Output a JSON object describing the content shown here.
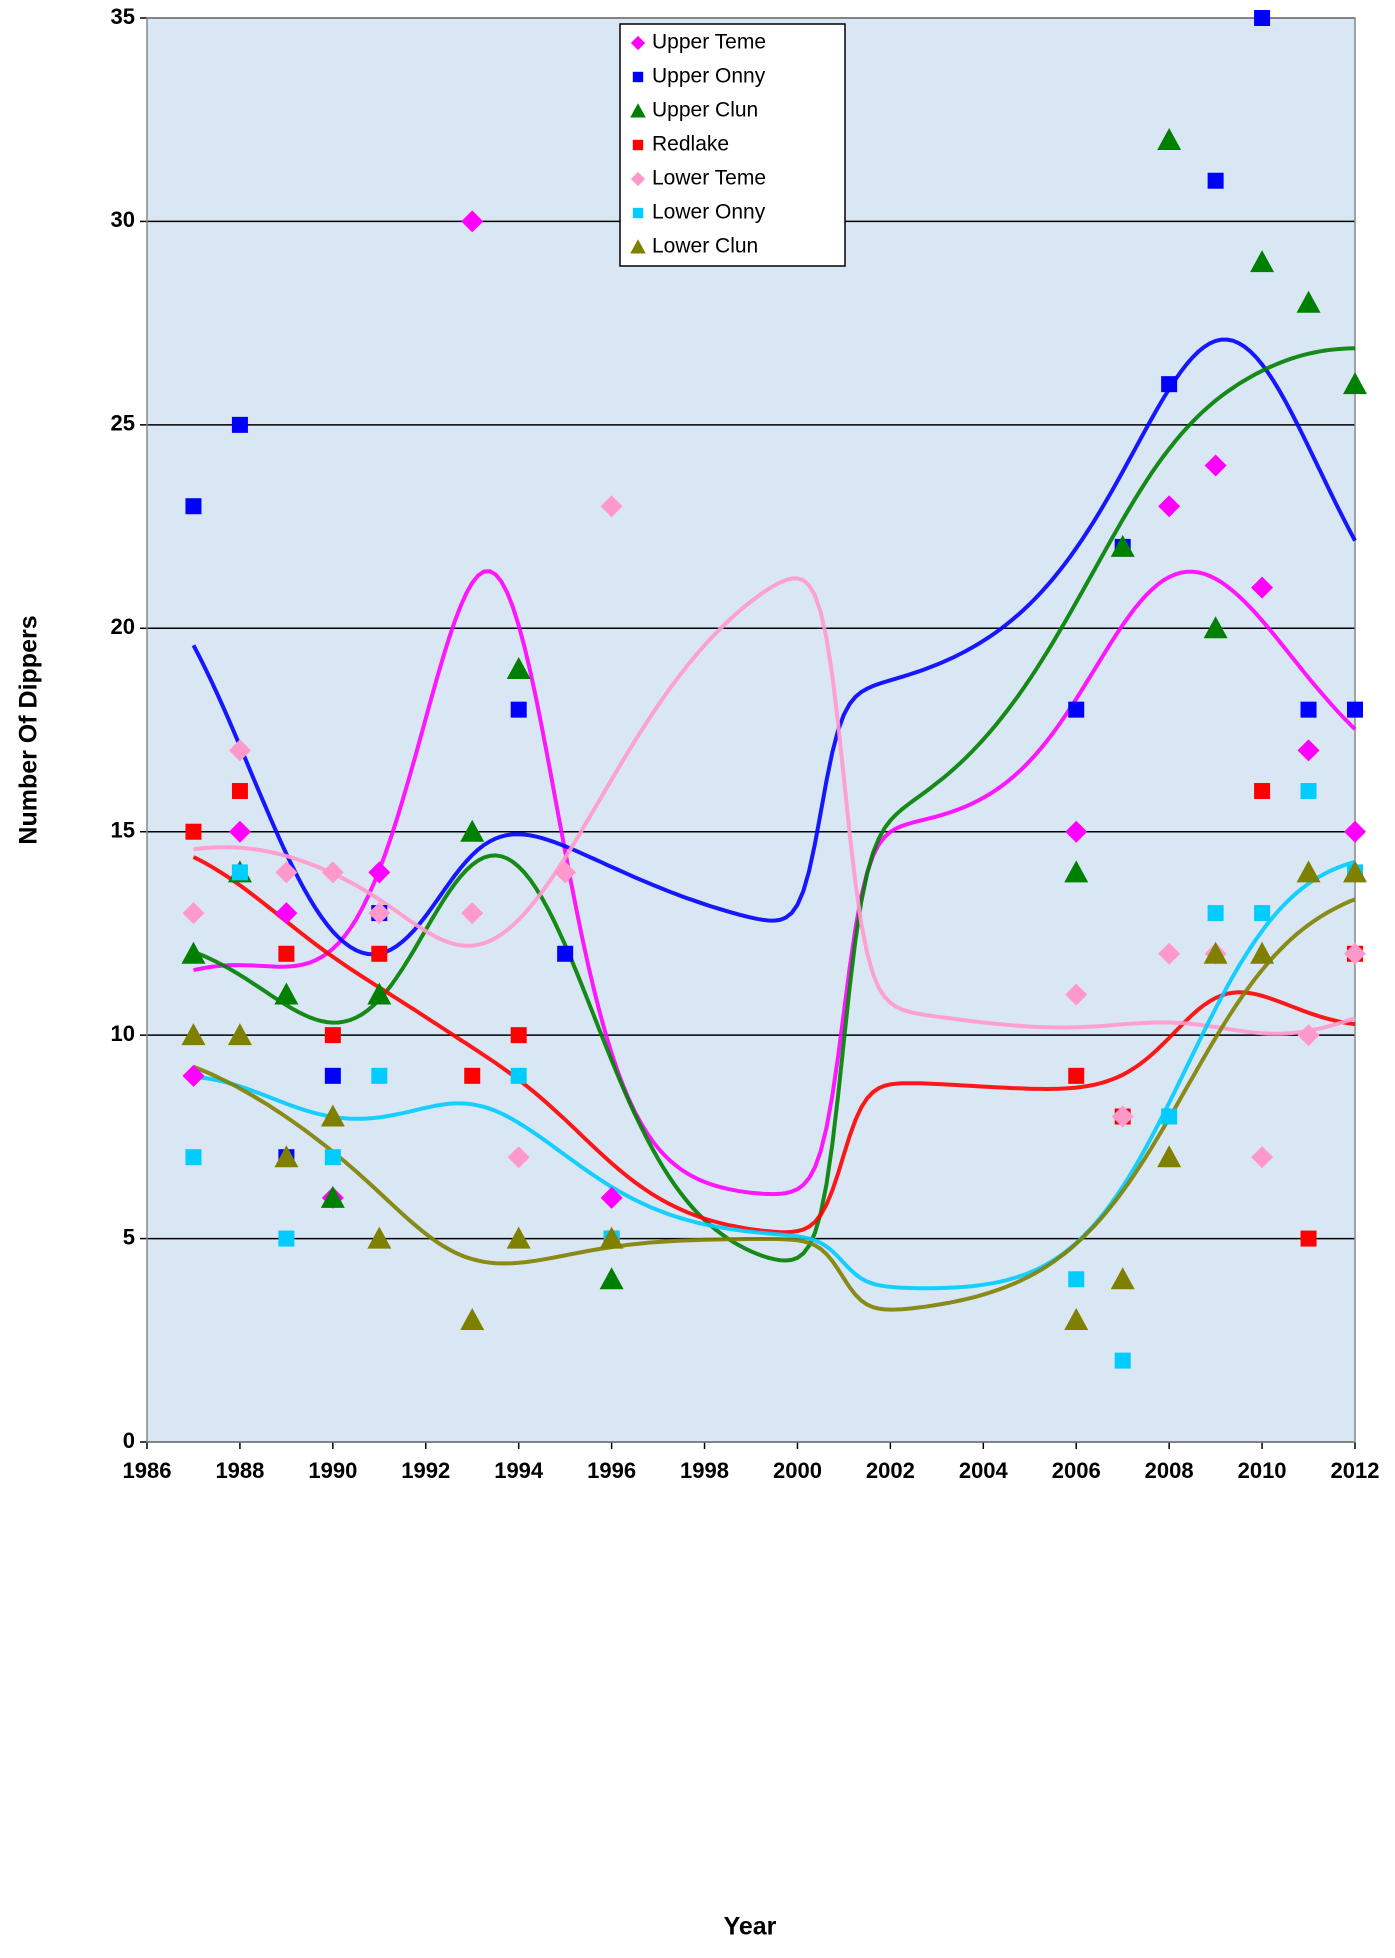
{
  "chart_data": {
    "type": "scatter",
    "x_label": "Year",
    "y_label": "Number Of Dippers",
    "x": [
      1987,
      1988,
      1989,
      1990,
      1991,
      1993,
      1994,
      1995,
      1996,
      2006,
      2007,
      2008,
      2009,
      2010,
      2011,
      2012
    ],
    "series": [
      {
        "name": "Upper Teme",
        "color": "#ff00ff",
        "marker": "diamond",
        "values": [
          9,
          15,
          13,
          6,
          14,
          30,
          null,
          null,
          6,
          15,
          null,
          23,
          24,
          21,
          17,
          15
        ]
      },
      {
        "name": "Upper Onny",
        "color": "#0000ff",
        "marker": "square",
        "values": [
          23,
          25,
          7,
          9,
          13,
          null,
          18,
          12,
          null,
          18,
          22,
          26,
          31,
          35,
          18,
          18
        ]
      },
      {
        "name": "Upper Clun",
        "color": "#008000",
        "marker": "triangle",
        "values": [
          12,
          14,
          11,
          6,
          11,
          15,
          19,
          null,
          4,
          14,
          22,
          32,
          20,
          29,
          28,
          26
        ]
      },
      {
        "name": "Redlake",
        "color": "#ff0000",
        "marker": "square",
        "values": [
          15,
          16,
          12,
          10,
          12,
          9,
          10,
          null,
          5,
          9,
          8,
          null,
          null,
          16,
          5,
          12
        ]
      },
      {
        "name": "Lower Teme",
        "color": "#ff99cc",
        "marker": "diamond",
        "values": [
          13,
          17,
          14,
          14,
          13,
          13,
          7,
          14,
          23,
          11,
          8,
          12,
          12,
          7,
          10,
          12
        ]
      },
      {
        "name": "Lower Onny",
        "color": "#00ccff",
        "marker": "square",
        "values": [
          7,
          14,
          5,
          7,
          9,
          null,
          9,
          null,
          5,
          4,
          2,
          8,
          13,
          13,
          16,
          14
        ]
      },
      {
        "name": "Lower Clun",
        "color": "#808000",
        "marker": "triangle",
        "values": [
          10,
          10,
          7,
          8,
          5,
          3,
          5,
          null,
          5,
          3,
          4,
          7,
          12,
          12,
          14,
          14
        ]
      }
    ],
    "xlim": [
      1986,
      2012
    ],
    "xticks": [
      1986,
      1988,
      1990,
      1992,
      1994,
      1996,
      1998,
      2000,
      2002,
      2004,
      2006,
      2008,
      2010,
      2012
    ],
    "ylim": [
      0,
      35
    ],
    "yticks": [
      0,
      5,
      10,
      15,
      20,
      25,
      30,
      35
    ],
    "grid": true,
    "legend": "top",
    "plot_background": "#d9e7f4"
  }
}
